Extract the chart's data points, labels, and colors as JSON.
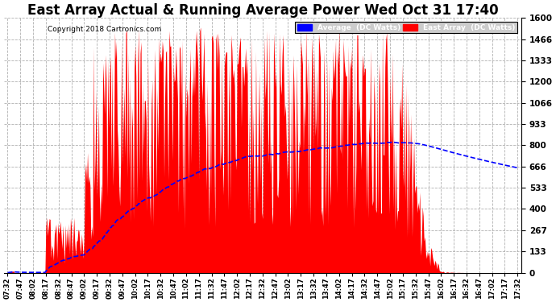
{
  "title": "East Array Actual & Running Average Power Wed Oct 31 17:40",
  "copyright": "Copyright 2018 Cartronics.com",
  "ylabel_right_ticks": [
    0.0,
    133.3,
    266.6,
    399.9,
    533.2,
    666.5,
    799.8,
    933.1,
    1066.3,
    1199.6,
    1332.9,
    1466.2,
    1599.5
  ],
  "ymax": 1599.5,
  "ymin": 0.0,
  "bar_color": "#ff0000",
  "avg_color": "#0000ff",
  "bg_color": "#ffffff",
  "grid_color": "#b0b0b0",
  "title_fontsize": 12,
  "legend_labels": [
    "Average  (DC Watts)",
    "East Array  (DC Watts)"
  ],
  "legend_colors_bg": [
    "#0000ff",
    "#ff0000"
  ],
  "legend_text_color": "#ffffff",
  "x_tick_labels": [
    "07:32",
    "07:47",
    "08:02",
    "08:17",
    "08:32",
    "08:47",
    "09:02",
    "09:17",
    "09:32",
    "09:47",
    "10:02",
    "10:17",
    "10:32",
    "10:47",
    "11:02",
    "11:17",
    "11:32",
    "11:47",
    "12:02",
    "12:17",
    "12:32",
    "12:47",
    "13:02",
    "13:17",
    "13:32",
    "13:47",
    "14:02",
    "14:17",
    "14:32",
    "14:47",
    "15:02",
    "15:17",
    "15:32",
    "15:47",
    "16:02",
    "16:17",
    "16:32",
    "16:47",
    "17:02",
    "17:17",
    "17:32"
  ]
}
